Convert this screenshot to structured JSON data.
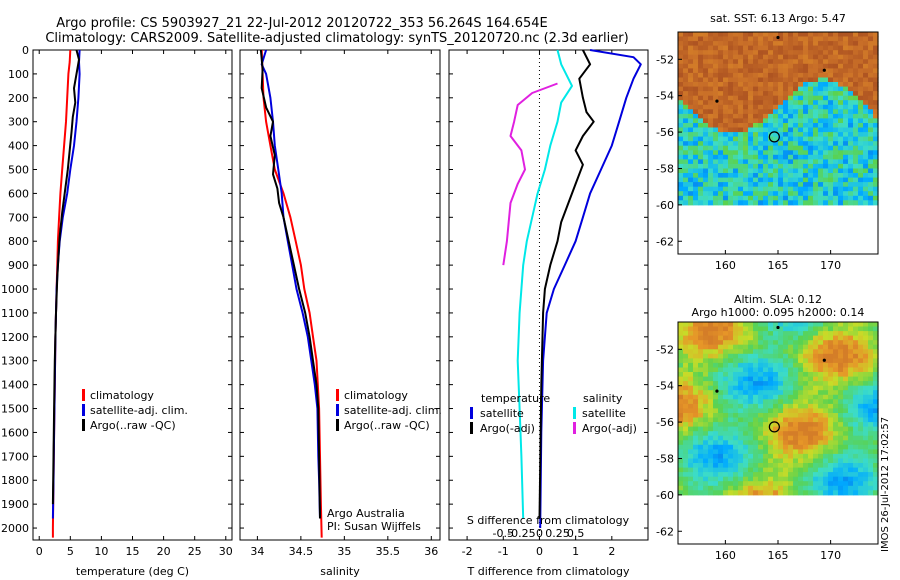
{
  "header": {
    "line1": "Argo profile: CS 5903927_21 22-Jul-2012 20120722_353 56.264S 164.654E",
    "line2": "Climatology: CARS2009. Satellite-adjusted climatology: synTS_20120720.nc (2.3d earlier)"
  },
  "colors": {
    "red": "#ff0000",
    "blue": "#0000dd",
    "black": "#000000",
    "cyan": "#00e8e8",
    "magenta": "#e020e0"
  },
  "chart_data": [
    {
      "id": "temperature",
      "type": "line",
      "xlabel": "temperature (deg C)",
      "ylabel": "",
      "xlim": [
        -1,
        31
      ],
      "ylim": [
        2050,
        0
      ],
      "xticks": [
        0,
        5,
        10,
        15,
        20,
        25,
        30
      ],
      "xtick_labels": [
        "0",
        "5",
        "10",
        "15",
        "20",
        "25",
        "30"
      ],
      "yticks": [
        0,
        100,
        200,
        300,
        400,
        500,
        600,
        700,
        800,
        900,
        1000,
        1100,
        1200,
        1300,
        1400,
        1500,
        1600,
        1700,
        1800,
        1900,
        2000
      ],
      "ytick_labels": [
        "0",
        "100",
        "200",
        "300",
        "400",
        "500",
        "600",
        "700",
        "800",
        "900",
        "1000",
        "1100",
        "1200",
        "1300",
        "1400",
        "1500",
        "1600",
        "1700",
        "1800",
        "1900",
        "2000"
      ],
      "legend": {
        "position": "lower-right",
        "entries": [
          "climatology",
          "satellite-adj. clim.",
          "Argo(..raw -QC)"
        ]
      },
      "series": [
        {
          "name": "climatology",
          "color": "#ff0000",
          "points": [
            [
              5.0,
              0
            ],
            [
              4.9,
              50
            ],
            [
              4.7,
              100
            ],
            [
              4.5,
              200
            ],
            [
              4.3,
              300
            ],
            [
              4.0,
              400
            ],
            [
              3.7,
              500
            ],
            [
              3.4,
              600
            ],
            [
              3.2,
              700
            ],
            [
              3.0,
              800
            ],
            [
              2.9,
              900
            ],
            [
              2.8,
              1000
            ],
            [
              2.6,
              1200
            ],
            [
              2.5,
              1400
            ],
            [
              2.4,
              1600
            ],
            [
              2.3,
              1800
            ],
            [
              2.2,
              2000
            ],
            [
              2.2,
              2040
            ]
          ]
        },
        {
          "name": "satellite-adj. clim.",
          "color": "#0000dd",
          "points": [
            [
              6.5,
              0
            ],
            [
              6.4,
              50
            ],
            [
              6.5,
              100
            ],
            [
              6.3,
              200
            ],
            [
              6.0,
              300
            ],
            [
              5.6,
              400
            ],
            [
              5.0,
              500
            ],
            [
              4.5,
              600
            ],
            [
              3.8,
              700
            ],
            [
              3.3,
              800
            ],
            [
              3.0,
              900
            ],
            [
              2.8,
              1000
            ],
            [
              2.6,
              1200
            ],
            [
              2.5,
              1400
            ],
            [
              2.4,
              1600
            ],
            [
              2.3,
              1800
            ],
            [
              2.2,
              1960
            ]
          ]
        },
        {
          "name": "Argo(..raw -QC)",
          "color": "#000000",
          "points": [
            [
              6.0,
              0
            ],
            [
              6.4,
              40
            ],
            [
              6.0,
              100
            ],
            [
              5.6,
              160
            ],
            [
              5.8,
              220
            ],
            [
              5.4,
              280
            ],
            [
              5.2,
              340
            ],
            [
              4.9,
              420
            ],
            [
              4.6,
              500
            ],
            [
              4.2,
              580
            ],
            [
              3.7,
              680
            ],
            [
              3.3,
              780
            ],
            [
              3.1,
              860
            ],
            [
              2.9,
              950
            ],
            [
              2.7,
              1100
            ],
            [
              2.5,
              1300
            ],
            [
              2.4,
              1500
            ],
            [
              2.3,
              1700
            ],
            [
              2.2,
              1900
            ]
          ]
        }
      ]
    },
    {
      "id": "salinity",
      "type": "line",
      "xlabel": "salinity",
      "ylabel": "",
      "xlim": [
        33.8,
        36.1
      ],
      "ylim": [
        2050,
        0
      ],
      "xticks": [
        34,
        34.5,
        35,
        35.5,
        36
      ],
      "xtick_labels": [
        "34",
        "34.5",
        "35",
        "35.5",
        "36"
      ],
      "legend": {
        "position": "lower-right",
        "entries": [
          "climatology",
          "satellite-adj. clim.",
          "Argo(..raw -QC)"
        ]
      },
      "annotation": [
        "Argo Australia",
        "PI: Susan Wijffels"
      ],
      "series": [
        {
          "name": "climatology",
          "color": "#ff0000",
          "points": [
            [
              34.05,
              0
            ],
            [
              34.06,
              100
            ],
            [
              34.07,
              200
            ],
            [
              34.1,
              300
            ],
            [
              34.15,
              400
            ],
            [
              34.2,
              500
            ],
            [
              34.3,
              600
            ],
            [
              34.38,
              700
            ],
            [
              34.44,
              800
            ],
            [
              34.5,
              900
            ],
            [
              34.54,
              1000
            ],
            [
              34.6,
              1100
            ],
            [
              34.64,
              1200
            ],
            [
              34.68,
              1300
            ],
            [
              34.71,
              1500
            ],
            [
              34.72,
              1700
            ],
            [
              34.73,
              1900
            ],
            [
              34.74,
              2040
            ]
          ]
        },
        {
          "name": "satellite-adj. clim.",
          "color": "#0000dd",
          "points": [
            [
              34.1,
              0
            ],
            [
              34.05,
              60
            ],
            [
              34.1,
              100
            ],
            [
              34.15,
              200
            ],
            [
              34.18,
              300
            ],
            [
              34.2,
              400
            ],
            [
              34.24,
              500
            ],
            [
              34.28,
              600
            ],
            [
              34.3,
              700
            ],
            [
              34.35,
              800
            ],
            [
              34.4,
              900
            ],
            [
              34.45,
              1000
            ],
            [
              34.52,
              1100
            ],
            [
              34.58,
              1200
            ],
            [
              34.62,
              1300
            ],
            [
              34.66,
              1400
            ],
            [
              34.69,
              1500
            ],
            [
              34.7,
              1700
            ],
            [
              34.71,
              1800
            ],
            [
              34.72,
              1960
            ]
          ]
        },
        {
          "name": "Argo(..raw -QC)",
          "color": "#000000",
          "points": [
            [
              34.04,
              0
            ],
            [
              34.06,
              80
            ],
            [
              34.05,
              160
            ],
            [
              34.1,
              240
            ],
            [
              34.18,
              300
            ],
            [
              34.15,
              360
            ],
            [
              34.2,
              440
            ],
            [
              34.18,
              520
            ],
            [
              34.23,
              580
            ],
            [
              34.25,
              640
            ],
            [
              34.3,
              700
            ],
            [
              34.36,
              800
            ],
            [
              34.42,
              900
            ],
            [
              34.48,
              1000
            ],
            [
              34.55,
              1100
            ],
            [
              34.6,
              1200
            ],
            [
              34.64,
              1300
            ],
            [
              34.68,
              1400
            ],
            [
              34.7,
              1500
            ],
            [
              34.71,
              1700
            ],
            [
              34.72,
              1960
            ]
          ]
        }
      ]
    },
    {
      "id": "difference",
      "type": "line",
      "xlabel": "T difference from climatology",
      "xlabel2": "S difference from climatology",
      "xlim": [
        -2.5,
        3.0
      ],
      "ylim": [
        2050,
        0
      ],
      "xticks": [
        -2,
        -1,
        0,
        1,
        2
      ],
      "xtick_labels": [
        "-2",
        "-1",
        "0",
        "1",
        "2"
      ],
      "xticks2": [
        -1,
        -0.5,
        0,
        0.5,
        1
      ],
      "xtick_labels2": [
        "-0.5",
        "-0.25",
        "0",
        "0.25",
        "0.5"
      ],
      "legend": {
        "position": "lower-right",
        "temperature_title": "temperature",
        "salinity_title": "salinity",
        "temperature_entries": [
          "satellite",
          "Argo(-adj)"
        ],
        "salinity_entries": [
          "satellite",
          "Argo(-adj)"
        ]
      },
      "series": [
        {
          "name": "T satellite",
          "color": "#0000dd",
          "points": [
            [
              1.4,
              0
            ],
            [
              2.6,
              30
            ],
            [
              2.8,
              60
            ],
            [
              2.6,
              120
            ],
            [
              2.4,
              200
            ],
            [
              2.2,
              300
            ],
            [
              2.0,
              400
            ],
            [
              1.7,
              500
            ],
            [
              1.4,
              600
            ],
            [
              1.2,
              700
            ],
            [
              1.0,
              800
            ],
            [
              0.7,
              900
            ],
            [
              0.4,
              1000
            ],
            [
              0.2,
              1100
            ],
            [
              0.1,
              1300
            ],
            [
              0.05,
              1600
            ],
            [
              0.02,
              2000
            ]
          ]
        },
        {
          "name": "T Argo(-adj)",
          "color": "#000000",
          "points": [
            [
              1.2,
              0
            ],
            [
              1.4,
              60
            ],
            [
              1.1,
              120
            ],
            [
              1.2,
              200
            ],
            [
              1.3,
              260
            ],
            [
              1.5,
              300
            ],
            [
              1.2,
              360
            ],
            [
              1.0,
              420
            ],
            [
              1.2,
              480
            ],
            [
              1.0,
              560
            ],
            [
              0.8,
              640
            ],
            [
              0.6,
              720
            ],
            [
              0.5,
              800
            ],
            [
              0.3,
              900
            ],
            [
              0.15,
              1000
            ],
            [
              0.1,
              1100
            ],
            [
              0.05,
              1400
            ],
            [
              0.0,
              1960
            ]
          ]
        },
        {
          "name": "S satellite",
          "color": "#00e8e8",
          "points": [
            [
              0.5,
              0
            ],
            [
              0.6,
              60
            ],
            [
              0.9,
              150
            ],
            [
              0.6,
              220
            ],
            [
              0.5,
              300
            ],
            [
              0.3,
              400
            ],
            [
              0.15,
              500
            ],
            [
              -0.05,
              600
            ],
            [
              -0.2,
              700
            ],
            [
              -0.35,
              800
            ],
            [
              -0.45,
              900
            ],
            [
              -0.5,
              1000
            ],
            [
              -0.55,
              1100
            ],
            [
              -0.6,
              1300
            ],
            [
              -0.55,
              1500
            ],
            [
              -0.5,
              1700
            ],
            [
              -0.45,
              1960
            ]
          ]
        },
        {
          "name": "S Argo(-adj)",
          "color": "#e020e0",
          "points": [
            [
              0.5,
              140
            ],
            [
              -0.2,
              180
            ],
            [
              -0.6,
              230
            ],
            [
              -0.7,
              300
            ],
            [
              -0.8,
              360
            ],
            [
              -0.5,
              420
            ],
            [
              -0.4,
              500
            ],
            [
              -0.6,
              560
            ],
            [
              -0.8,
              640
            ],
            [
              -0.85,
              720
            ],
            [
              -0.9,
              800
            ],
            [
              -1.0,
              900
            ]
          ]
        }
      ]
    },
    {
      "id": "sst-map",
      "type": "heatmap",
      "title": "sat. SST: 6.13 Argo: 5.47",
      "xlim": [
        155.5,
        174.5
      ],
      "ylim": [
        -62.7,
        -50.5
      ],
      "xticks": [
        160,
        165,
        170
      ],
      "xtick_labels": [
        "160",
        "165",
        "170"
      ],
      "yticks": [
        -52,
        -54,
        -56,
        -58,
        -60,
        -62
      ],
      "ytick_labels": [
        "-52",
        "-54",
        "-56",
        "-58",
        "-60",
        "-62"
      ],
      "data_lat_bottom": -60,
      "argo_position": [
        164.654,
        -56.264
      ],
      "other_floats": [
        [
          165.0,
          -50.8
        ],
        [
          169.4,
          -52.6
        ],
        [
          159.2,
          -54.3
        ]
      ]
    },
    {
      "id": "sla-map",
      "type": "heatmap",
      "title": "Altim. SLA: 0.12",
      "subtitle": "Argo h1000: 0.095 h2000: 0.14",
      "xlim": [
        155.5,
        174.5
      ],
      "ylim": [
        -62.7,
        -50.5
      ],
      "xticks": [
        160,
        165,
        170
      ],
      "xtick_labels": [
        "160",
        "165",
        "170"
      ],
      "yticks": [
        -52,
        -54,
        -56,
        -58,
        -60,
        -62
      ],
      "ytick_labels": [
        "-52",
        "-54",
        "-56",
        "-58",
        "-60",
        "-62"
      ],
      "data_lat_bottom": -60,
      "argo_position": [
        164.654,
        -56.264
      ],
      "other_floats": [
        [
          165.0,
          -50.8
        ],
        [
          169.4,
          -52.6
        ],
        [
          159.2,
          -54.3
        ]
      ]
    }
  ],
  "watermark": "IMOS 26-Jul-2012 17:02:57"
}
